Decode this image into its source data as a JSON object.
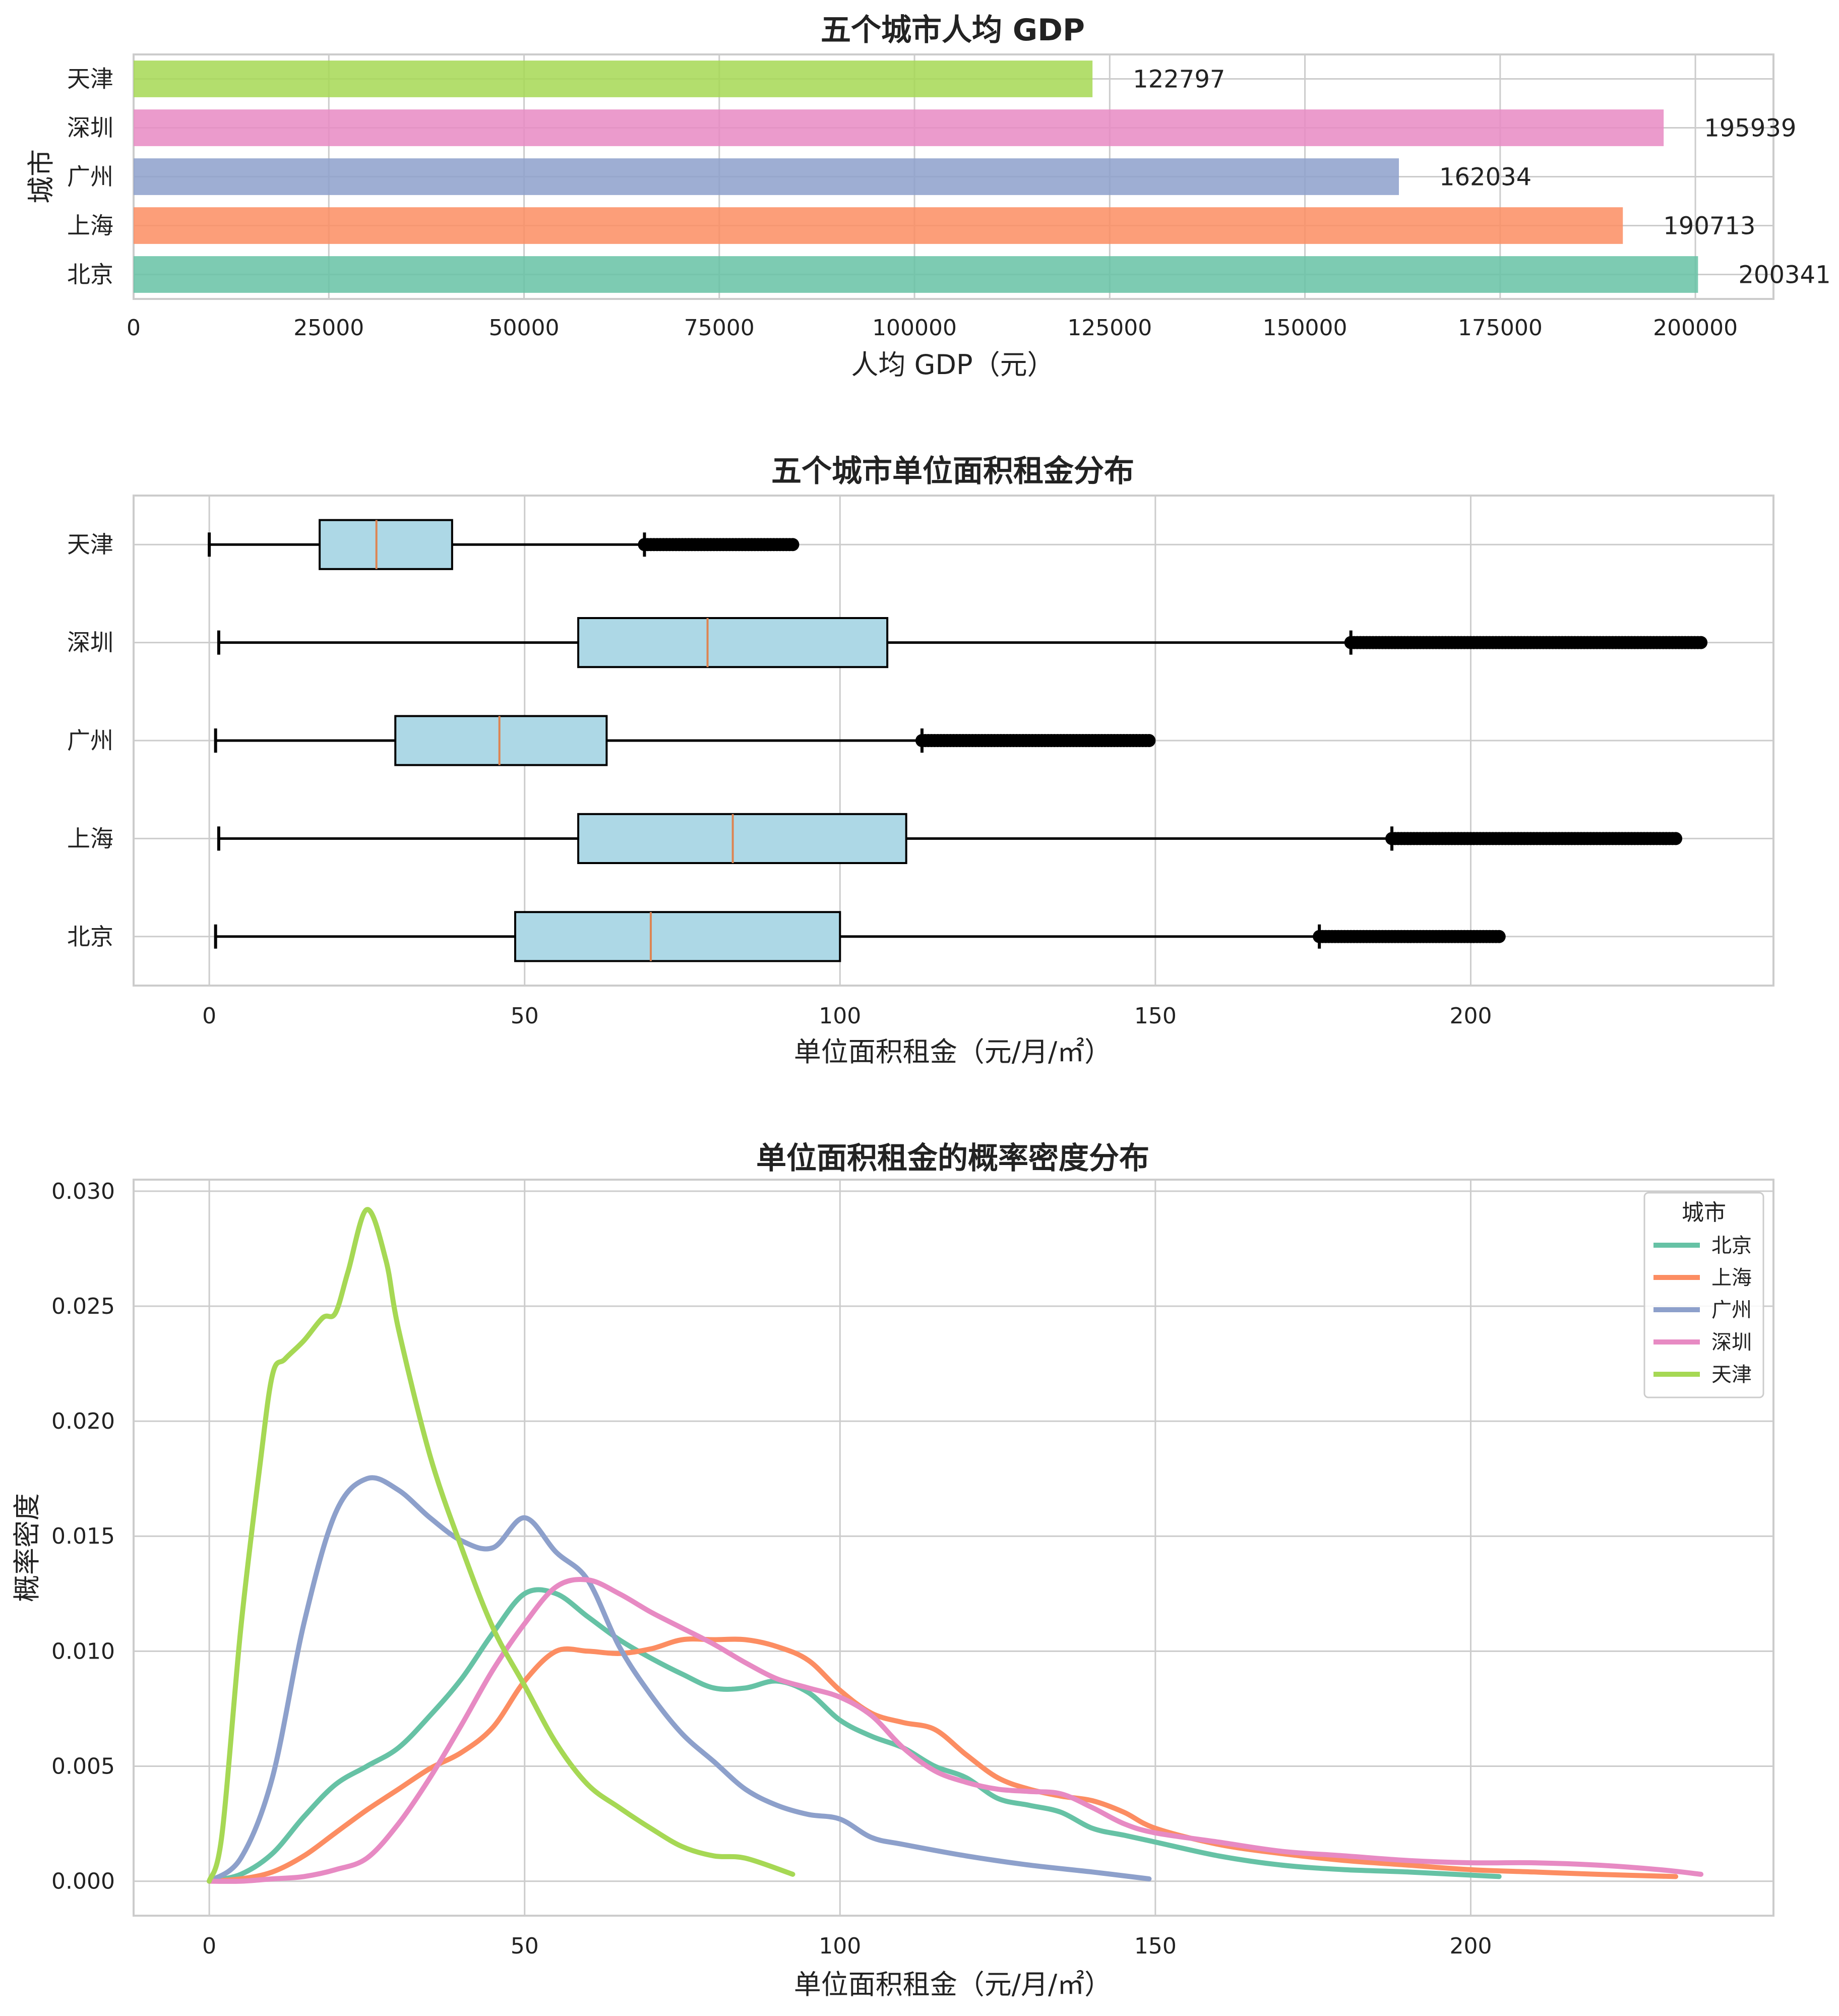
{
  "colors": {
    "北京": "#66c2a5",
    "上海": "#fc8d62",
    "广州": "#8da0cb",
    "深圳": "#e78ac3",
    "天津": "#a6d854",
    "box_fill": "#add8e6",
    "median": "#dd8452",
    "grid": "#cccccc",
    "spine": "#cccccc"
  },
  "chart_data": [
    {
      "type": "bar",
      "orientation": "horizontal",
      "title": "五个城市人均 GDP",
      "xlabel": "人均 GDP（元）",
      "ylabel": "城市",
      "categories": [
        "北京",
        "上海",
        "广州",
        "深圳",
        "天津"
      ],
      "values": [
        200341,
        190713,
        162034,
        195939,
        122797
      ],
      "value_labels": [
        "200341",
        "190713",
        "162034",
        "195939",
        "122797"
      ],
      "xlim": [
        0,
        210000
      ],
      "xticks": [
        0,
        25000,
        50000,
        75000,
        100000,
        125000,
        150000,
        175000,
        200000
      ],
      "xtick_labels": [
        "0",
        "25000",
        "50000",
        "75000",
        "100000",
        "125000",
        "150000",
        "175000",
        "200000"
      ],
      "grid": true
    },
    {
      "type": "box",
      "orientation": "horizontal",
      "title": "五个城市单位面积租金分布",
      "xlabel": "单位面积租金（元/月/㎡）",
      "categories": [
        "北京",
        "上海",
        "广州",
        "深圳",
        "天津"
      ],
      "boxes": [
        {
          "name": "北京",
          "whisker_low": 1,
          "q1": 48.5,
          "median": 70,
          "q3": 100,
          "whisker_high": 176,
          "outlier_range": [
            176,
            204.5
          ]
        },
        {
          "name": "上海",
          "whisker_low": 1.5,
          "q1": 58.5,
          "median": 83,
          "q3": 110.5,
          "whisker_high": 187.5,
          "outlier_range": [
            187.5,
            232.5
          ]
        },
        {
          "name": "广州",
          "whisker_low": 1,
          "q1": 29.5,
          "median": 46,
          "q3": 63,
          "whisker_high": 113,
          "outlier_range": [
            113,
            149
          ]
        },
        {
          "name": "深圳",
          "whisker_low": 1.5,
          "q1": 58.5,
          "median": 79,
          "q3": 107.5,
          "whisker_high": 181,
          "outlier_range": [
            181,
            236.5
          ]
        },
        {
          "name": "天津",
          "whisker_low": 0,
          "q1": 17.5,
          "median": 26.5,
          "q3": 38.5,
          "whisker_high": 69,
          "outlier_range": [
            69,
            92.5
          ]
        }
      ],
      "xlim": [
        -12,
        248
      ],
      "xticks": [
        0,
        50,
        100,
        150,
        200
      ],
      "xtick_labels": [
        "0",
        "50",
        "100",
        "150",
        "200"
      ],
      "grid": true
    },
    {
      "type": "line",
      "title": "单位面积租金的概率密度分布",
      "xlabel": "单位面积租金（元/月/㎡）",
      "ylabel": "概率密度",
      "xlim": [
        -12,
        248
      ],
      "ylim": [
        -0.0015,
        0.0305
      ],
      "xticks": [
        0,
        50,
        100,
        150,
        200
      ],
      "xtick_labels": [
        "0",
        "50",
        "100",
        "150",
        "200"
      ],
      "yticks": [
        0,
        0.005,
        0.01,
        0.015,
        0.02,
        0.025,
        0.03
      ],
      "ytick_labels": [
        "0.000",
        "0.005",
        "0.010",
        "0.015",
        "0.020",
        "0.025",
        "0.030"
      ],
      "legend": {
        "title": "城市",
        "position": "top-right"
      },
      "grid": true,
      "series": [
        {
          "name": "北京",
          "x": [
            0,
            5,
            10,
            15,
            20,
            25,
            30,
            35,
            40,
            45,
            50,
            55,
            60,
            65,
            70,
            75,
            80,
            85,
            90,
            95,
            100,
            105,
            110,
            115,
            120,
            125,
            130,
            135,
            140,
            145,
            150,
            160,
            170,
            180,
            190,
            204.5
          ],
          "y": [
            0,
            0.0003,
            0.0012,
            0.0028,
            0.0042,
            0.005,
            0.0058,
            0.0072,
            0.0088,
            0.0108,
            0.0125,
            0.0125,
            0.0115,
            0.0105,
            0.0097,
            0.009,
            0.0084,
            0.0084,
            0.0087,
            0.0082,
            0.007,
            0.0063,
            0.0058,
            0.005,
            0.0045,
            0.0036,
            0.0033,
            0.003,
            0.0023,
            0.002,
            0.0017,
            0.0011,
            0.0007,
            0.0005,
            0.0004,
            0.0002
          ]
        },
        {
          "name": "上海",
          "x": [
            0,
            5,
            10,
            15,
            20,
            25,
            30,
            35,
            40,
            45,
            50,
            55,
            60,
            65,
            70,
            75,
            80,
            85,
            90,
            95,
            100,
            105,
            110,
            115,
            120,
            125,
            130,
            135,
            140,
            145,
            150,
            160,
            170,
            180,
            190,
            200,
            210,
            220,
            232.5
          ],
          "y": [
            0,
            0.0001,
            0.0004,
            0.0011,
            0.0021,
            0.0031,
            0.004,
            0.0049,
            0.0056,
            0.0067,
            0.0087,
            0.01,
            0.01,
            0.0099,
            0.0101,
            0.0105,
            0.0105,
            0.0105,
            0.0102,
            0.0096,
            0.0083,
            0.0073,
            0.0069,
            0.0066,
            0.0055,
            0.0045,
            0.004,
            0.0037,
            0.0035,
            0.003,
            0.0023,
            0.0016,
            0.0012,
            0.0009,
            0.0007,
            0.0005,
            0.0004,
            0.0003,
            0.0002
          ]
        },
        {
          "name": "广州",
          "x": [
            0,
            5,
            10,
            15,
            20,
            25,
            30,
            35,
            40,
            45,
            50,
            55,
            60,
            65,
            70,
            75,
            80,
            85,
            90,
            95,
            100,
            105,
            110,
            120,
            130,
            140,
            149
          ],
          "y": [
            0,
            0.001,
            0.0045,
            0.0112,
            0.016,
            0.0175,
            0.017,
            0.0158,
            0.0148,
            0.0145,
            0.0158,
            0.0143,
            0.0131,
            0.0102,
            0.0081,
            0.0064,
            0.0052,
            0.004,
            0.0033,
            0.0029,
            0.0027,
            0.0019,
            0.0016,
            0.0011,
            0.0007,
            0.0004,
            0.0001
          ]
        },
        {
          "name": "深圳",
          "x": [
            0,
            5,
            10,
            15,
            20,
            25,
            30,
            35,
            40,
            45,
            50,
            55,
            60,
            65,
            70,
            75,
            80,
            85,
            90,
            95,
            100,
            105,
            110,
            115,
            120,
            125,
            130,
            135,
            140,
            145,
            150,
            160,
            170,
            180,
            190,
            200,
            210,
            220,
            230,
            236.5
          ],
          "y": [
            0,
            0,
            0.0001,
            0.0002,
            0.0005,
            0.001,
            0.0025,
            0.0045,
            0.0068,
            0.0092,
            0.0112,
            0.0128,
            0.0131,
            0.0125,
            0.0117,
            0.011,
            0.0103,
            0.0095,
            0.0088,
            0.0084,
            0.008,
            0.0072,
            0.0058,
            0.0048,
            0.0043,
            0.004,
            0.0039,
            0.0038,
            0.0032,
            0.0025,
            0.0021,
            0.0017,
            0.0013,
            0.0011,
            0.0009,
            0.0008,
            0.0008,
            0.0007,
            0.0005,
            0.0003
          ]
        },
        {
          "name": "天津",
          "x": [
            0,
            2,
            5,
            8,
            10,
            12,
            15,
            18,
            20,
            22,
            25,
            28,
            30,
            35,
            40,
            45,
            50,
            55,
            60,
            65,
            70,
            75,
            80,
            85,
            92.5
          ],
          "y": [
            0,
            0.002,
            0.011,
            0.018,
            0.022,
            0.0227,
            0.0235,
            0.0245,
            0.0247,
            0.0265,
            0.0292,
            0.027,
            0.024,
            0.0185,
            0.0145,
            0.011,
            0.0085,
            0.006,
            0.0042,
            0.0032,
            0.0023,
            0.0015,
            0.0011,
            0.001,
            0.0003
          ]
        }
      ]
    }
  ]
}
